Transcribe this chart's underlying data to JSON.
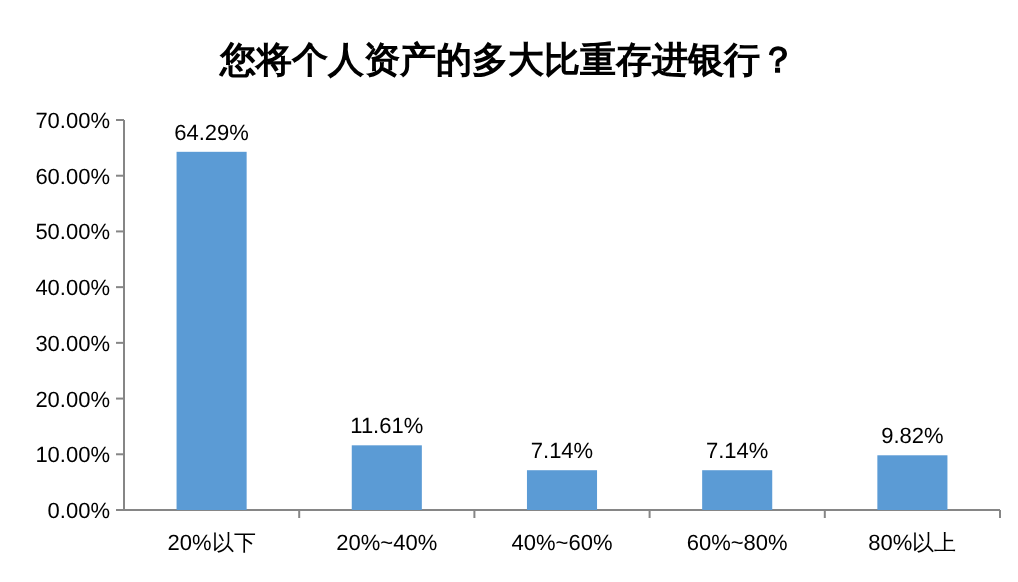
{
  "chart_data": {
    "type": "bar",
    "title": "您将个人资产的多大比重存进银行？",
    "categories": [
      "20%以下",
      "20%~40%",
      "40%~60%",
      "60%~80%",
      "80%以上"
    ],
    "values": [
      64.29,
      11.61,
      7.14,
      7.14,
      9.82
    ],
    "value_labels": [
      "64.29%",
      "11.61%",
      "7.14%",
      "7.14%",
      "9.82%"
    ],
    "color": "#5b9bd5",
    "ylim": [
      0,
      70
    ],
    "yticks": [
      {
        "value": 0,
        "label": "0.00%"
      },
      {
        "value": 10,
        "label": "10.00%"
      },
      {
        "value": 20,
        "label": "20.00%"
      },
      {
        "value": 30,
        "label": "30.00%"
      },
      {
        "value": 40,
        "label": "40.00%"
      },
      {
        "value": 50,
        "label": "50.00%"
      },
      {
        "value": 60,
        "label": "60.00%"
      },
      {
        "value": 70,
        "label": "70.00%"
      }
    ]
  }
}
